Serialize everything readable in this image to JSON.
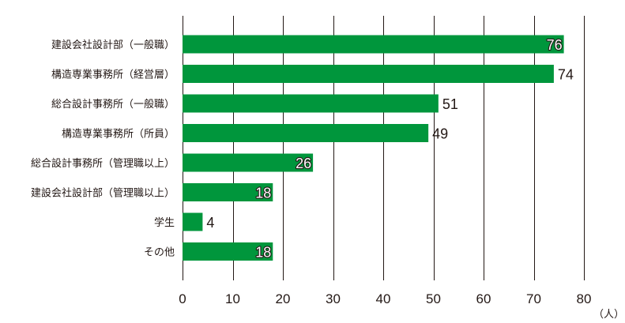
{
  "chart_data": {
    "type": "bar",
    "orientation": "horizontal",
    "categories": [
      "建設会社設計部（一般職）",
      "構造専業事務所（経営層）",
      "総合設計事務所（一般職）",
      "構造専業事務所（所員）",
      "総合設計事務所（管理職以上）",
      "建設会社設計部（管理職以上）",
      "学生",
      "その他"
    ],
    "values": [
      76,
      74,
      51,
      49,
      26,
      18,
      4,
      18
    ],
    "label_inside_bar": [
      true,
      false,
      false,
      false,
      true,
      true,
      false,
      true
    ],
    "x_ticks": [
      0,
      10,
      20,
      30,
      40,
      50,
      60,
      70,
      80
    ],
    "xlim": [
      0,
      80
    ],
    "xlabel": "（人）",
    "title": "",
    "grid": true,
    "bar_color": "#00963c",
    "grid_color": "#231815"
  }
}
